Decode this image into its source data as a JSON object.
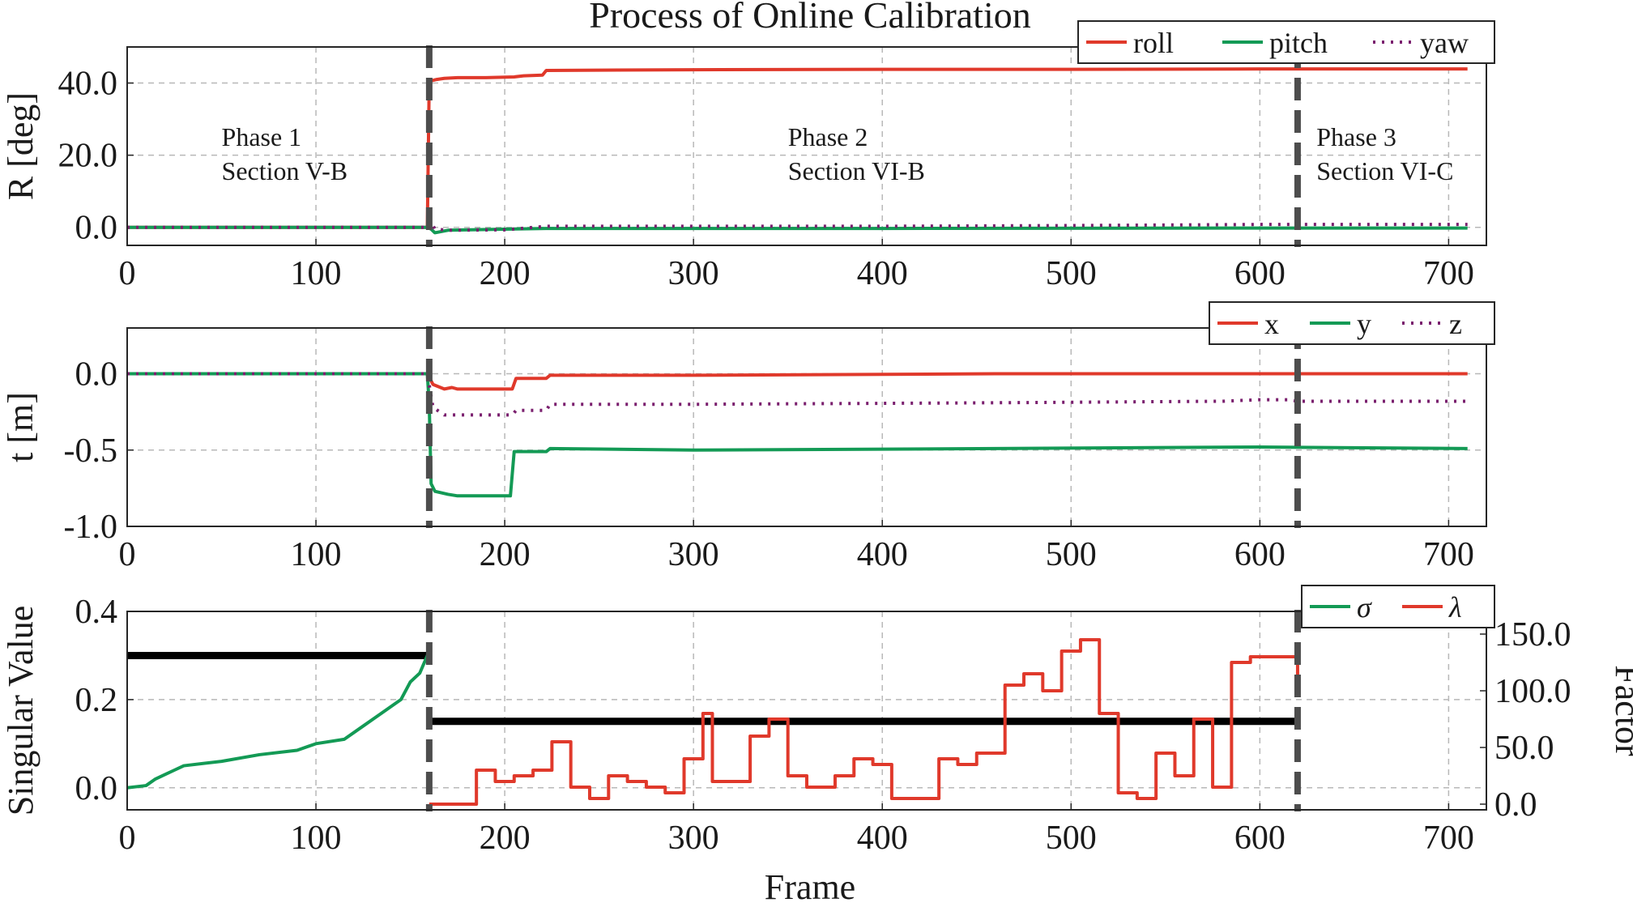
{
  "title": "Process of Online Calibration",
  "xlabel": "Frame",
  "colors": {
    "red": "#e0392b",
    "green": "#139a55",
    "purple": "#7a1f6e",
    "black": "#000000",
    "phase_line": "#4d4d4d",
    "grid": "#b8b8b8"
  },
  "phase_lines": [
    160,
    620
  ],
  "chart_data": [
    {
      "type": "line",
      "name": "rotation",
      "ylabel": "R [deg]",
      "xlim": [
        0,
        720
      ],
      "ylim": [
        -5,
        50
      ],
      "x_ticks": [
        "0",
        "100",
        "200",
        "300",
        "400",
        "500",
        "600",
        "700"
      ],
      "y_ticks": [
        0,
        20,
        40
      ],
      "y_tick_labels": [
        "0.0",
        "20.0",
        "40.0"
      ],
      "grid": true,
      "legend": "top-right",
      "phases": [
        {
          "title": "Phase 1",
          "subtitle": "Section V-B",
          "x": 50
        },
        {
          "title": "Phase 2",
          "subtitle": "Section VI-B",
          "x": 350
        },
        {
          "title": "Phase 3",
          "subtitle": "Section VI-C",
          "x": 630
        }
      ],
      "series": [
        {
          "name": "roll",
          "color": "red",
          "dash": "",
          "points": [
            [
              0,
              0
            ],
            [
              159,
              0
            ],
            [
              160,
              40.5
            ],
            [
              164,
              41
            ],
            [
              168,
              41.3
            ],
            [
              175,
              41.5
            ],
            [
              190,
              41.5
            ],
            [
              205,
              41.7
            ],
            [
              210,
              42
            ],
            [
              220,
              42.2
            ],
            [
              222,
              43.5
            ],
            [
              300,
              43.7
            ],
            [
              400,
              43.8
            ],
            [
              500,
              43.8
            ],
            [
              600,
              43.9
            ],
            [
              700,
              43.9
            ],
            [
              710,
              43.9
            ]
          ]
        },
        {
          "name": "pitch",
          "color": "green",
          "dash": "",
          "points": [
            [
              0,
              0
            ],
            [
              159,
              0
            ],
            [
              161,
              -0.5
            ],
            [
              163,
              -1.5
            ],
            [
              170,
              -0.8
            ],
            [
              200,
              -0.5
            ],
            [
              222,
              -0.3
            ],
            [
              400,
              -0.3
            ],
            [
              600,
              -0.2
            ],
            [
              710,
              -0.2
            ]
          ]
        },
        {
          "name": "yaw",
          "color": "purple",
          "dash": "3,8",
          "points": [
            [
              0,
              0
            ],
            [
              159,
              0
            ],
            [
              161,
              1.5
            ],
            [
              163,
              -0.5
            ],
            [
              170,
              -0.8
            ],
            [
              200,
              -0.7
            ],
            [
              222,
              0.3
            ],
            [
              400,
              0.3
            ],
            [
              500,
              0.5
            ],
            [
              600,
              0.8
            ],
            [
              710,
              0.8
            ]
          ]
        }
      ]
    },
    {
      "type": "line",
      "name": "translation",
      "ylabel": "t [m]",
      "xlim": [
        0,
        720
      ],
      "ylim": [
        -1.0,
        0.3
      ],
      "x_ticks": [
        "0",
        "100",
        "200",
        "300",
        "400",
        "500",
        "600",
        "700"
      ],
      "y_ticks": [
        0,
        -0.5,
        -1.0
      ],
      "y_tick_labels": [
        "0.0",
        "-0.5",
        "-1.0"
      ],
      "grid": true,
      "legend": "top-right",
      "series": [
        {
          "name": "x",
          "color": "red",
          "dash": "",
          "points": [
            [
              0,
              0
            ],
            [
              159,
              0
            ],
            [
              162,
              -0.07
            ],
            [
              168,
              -0.1
            ],
            [
              172,
              -0.09
            ],
            [
              175,
              -0.1
            ],
            [
              204,
              -0.1
            ],
            [
              206,
              -0.03
            ],
            [
              222,
              -0.03
            ],
            [
              224,
              -0.01
            ],
            [
              300,
              -0.01
            ],
            [
              460,
              0.0
            ],
            [
              710,
              0.0
            ]
          ]
        },
        {
          "name": "y",
          "color": "green",
          "dash": "",
          "points": [
            [
              0,
              0
            ],
            [
              159,
              0
            ],
            [
              160,
              -0.2
            ],
            [
              161,
              -0.72
            ],
            [
              163,
              -0.77
            ],
            [
              170,
              -0.79
            ],
            [
              175,
              -0.8
            ],
            [
              203,
              -0.8
            ],
            [
              205,
              -0.51
            ],
            [
              222,
              -0.51
            ],
            [
              224,
              -0.49
            ],
            [
              300,
              -0.5
            ],
            [
              460,
              -0.49
            ],
            [
              600,
              -0.48
            ],
            [
              710,
              -0.49
            ]
          ]
        },
        {
          "name": "z",
          "color": "purple",
          "dash": "3,8",
          "points": [
            [
              0,
              0
            ],
            [
              159,
              0
            ],
            [
              162,
              -0.22
            ],
            [
              168,
              -0.27
            ],
            [
              204,
              -0.27
            ],
            [
              206,
              -0.24
            ],
            [
              222,
              -0.24
            ],
            [
              224,
              -0.2
            ],
            [
              300,
              -0.2
            ],
            [
              460,
              -0.19
            ],
            [
              580,
              -0.18
            ],
            [
              600,
              -0.17
            ],
            [
              615,
              -0.17
            ],
            [
              620,
              -0.18
            ],
            [
              710,
              -0.18
            ]
          ]
        }
      ]
    },
    {
      "type": "line",
      "name": "singular",
      "ylabel": "Singular Value",
      "ylabel_right": "Factor",
      "xlim": [
        0,
        720
      ],
      "ylim": [
        -0.05,
        0.4
      ],
      "ylim_right": [
        -5,
        170
      ],
      "x_ticks": [
        "0",
        "100",
        "200",
        "300",
        "400",
        "500",
        "600",
        "700"
      ],
      "y_ticks": [
        0,
        0.2,
        0.4
      ],
      "y_tick_labels": [
        "0.0",
        "0.2",
        "0.4"
      ],
      "y_ticks_right": [
        0,
        50,
        100,
        150
      ],
      "y_tick_labels_right": [
        "0.0",
        "50.0",
        "100.0",
        "150.0"
      ],
      "grid": true,
      "legend": "top-right",
      "thresholds": [
        {
          "axis": "left",
          "y": 0.3,
          "x": [
            0,
            160
          ]
        },
        {
          "axis": "right",
          "y": 73,
          "x": [
            160,
            620
          ]
        }
      ],
      "series": [
        {
          "name": "σ",
          "color": "green",
          "axis": "left",
          "points": [
            [
              0,
              0
            ],
            [
              10,
              0.005
            ],
            [
              15,
              0.02
            ],
            [
              20,
              0.03
            ],
            [
              25,
              0.04
            ],
            [
              30,
              0.05
            ],
            [
              50,
              0.06
            ],
            [
              70,
              0.075
            ],
            [
              90,
              0.085
            ],
            [
              100,
              0.1
            ],
            [
              115,
              0.11
            ],
            [
              125,
              0.14
            ],
            [
              135,
              0.17
            ],
            [
              145,
              0.2
            ],
            [
              150,
              0.24
            ],
            [
              155,
              0.26
            ],
            [
              160,
              0.31
            ]
          ]
        },
        {
          "name": "λ",
          "color": "red",
          "axis": "right",
          "step": true,
          "points": [
            [
              160,
              0
            ],
            [
              185,
              0
            ],
            [
              185,
              30
            ],
            [
              195,
              20
            ],
            [
              205,
              25
            ],
            [
              215,
              30
            ],
            [
              225,
              55
            ],
            [
              235,
              15
            ],
            [
              245,
              5
            ],
            [
              255,
              25
            ],
            [
              265,
              20
            ],
            [
              275,
              15
            ],
            [
              285,
              10
            ],
            [
              295,
              40
            ],
            [
              305,
              80
            ],
            [
              310,
              20
            ],
            [
              330,
              60
            ],
            [
              340,
              75
            ],
            [
              350,
              25
            ],
            [
              360,
              15
            ],
            [
              375,
              25
            ],
            [
              385,
              40
            ],
            [
              395,
              35
            ],
            [
              405,
              5
            ],
            [
              420,
              5
            ],
            [
              430,
              40
            ],
            [
              440,
              35
            ],
            [
              450,
              45
            ],
            [
              465,
              105
            ],
            [
              475,
              115
            ],
            [
              485,
              100
            ],
            [
              495,
              135
            ],
            [
              505,
              145
            ],
            [
              515,
              80
            ],
            [
              525,
              10
            ],
            [
              535,
              5
            ],
            [
              545,
              45
            ],
            [
              555,
              25
            ],
            [
              565,
              75
            ],
            [
              575,
              15
            ],
            [
              585,
              125
            ],
            [
              595,
              130
            ],
            [
              620,
              95
            ]
          ]
        }
      ]
    }
  ]
}
